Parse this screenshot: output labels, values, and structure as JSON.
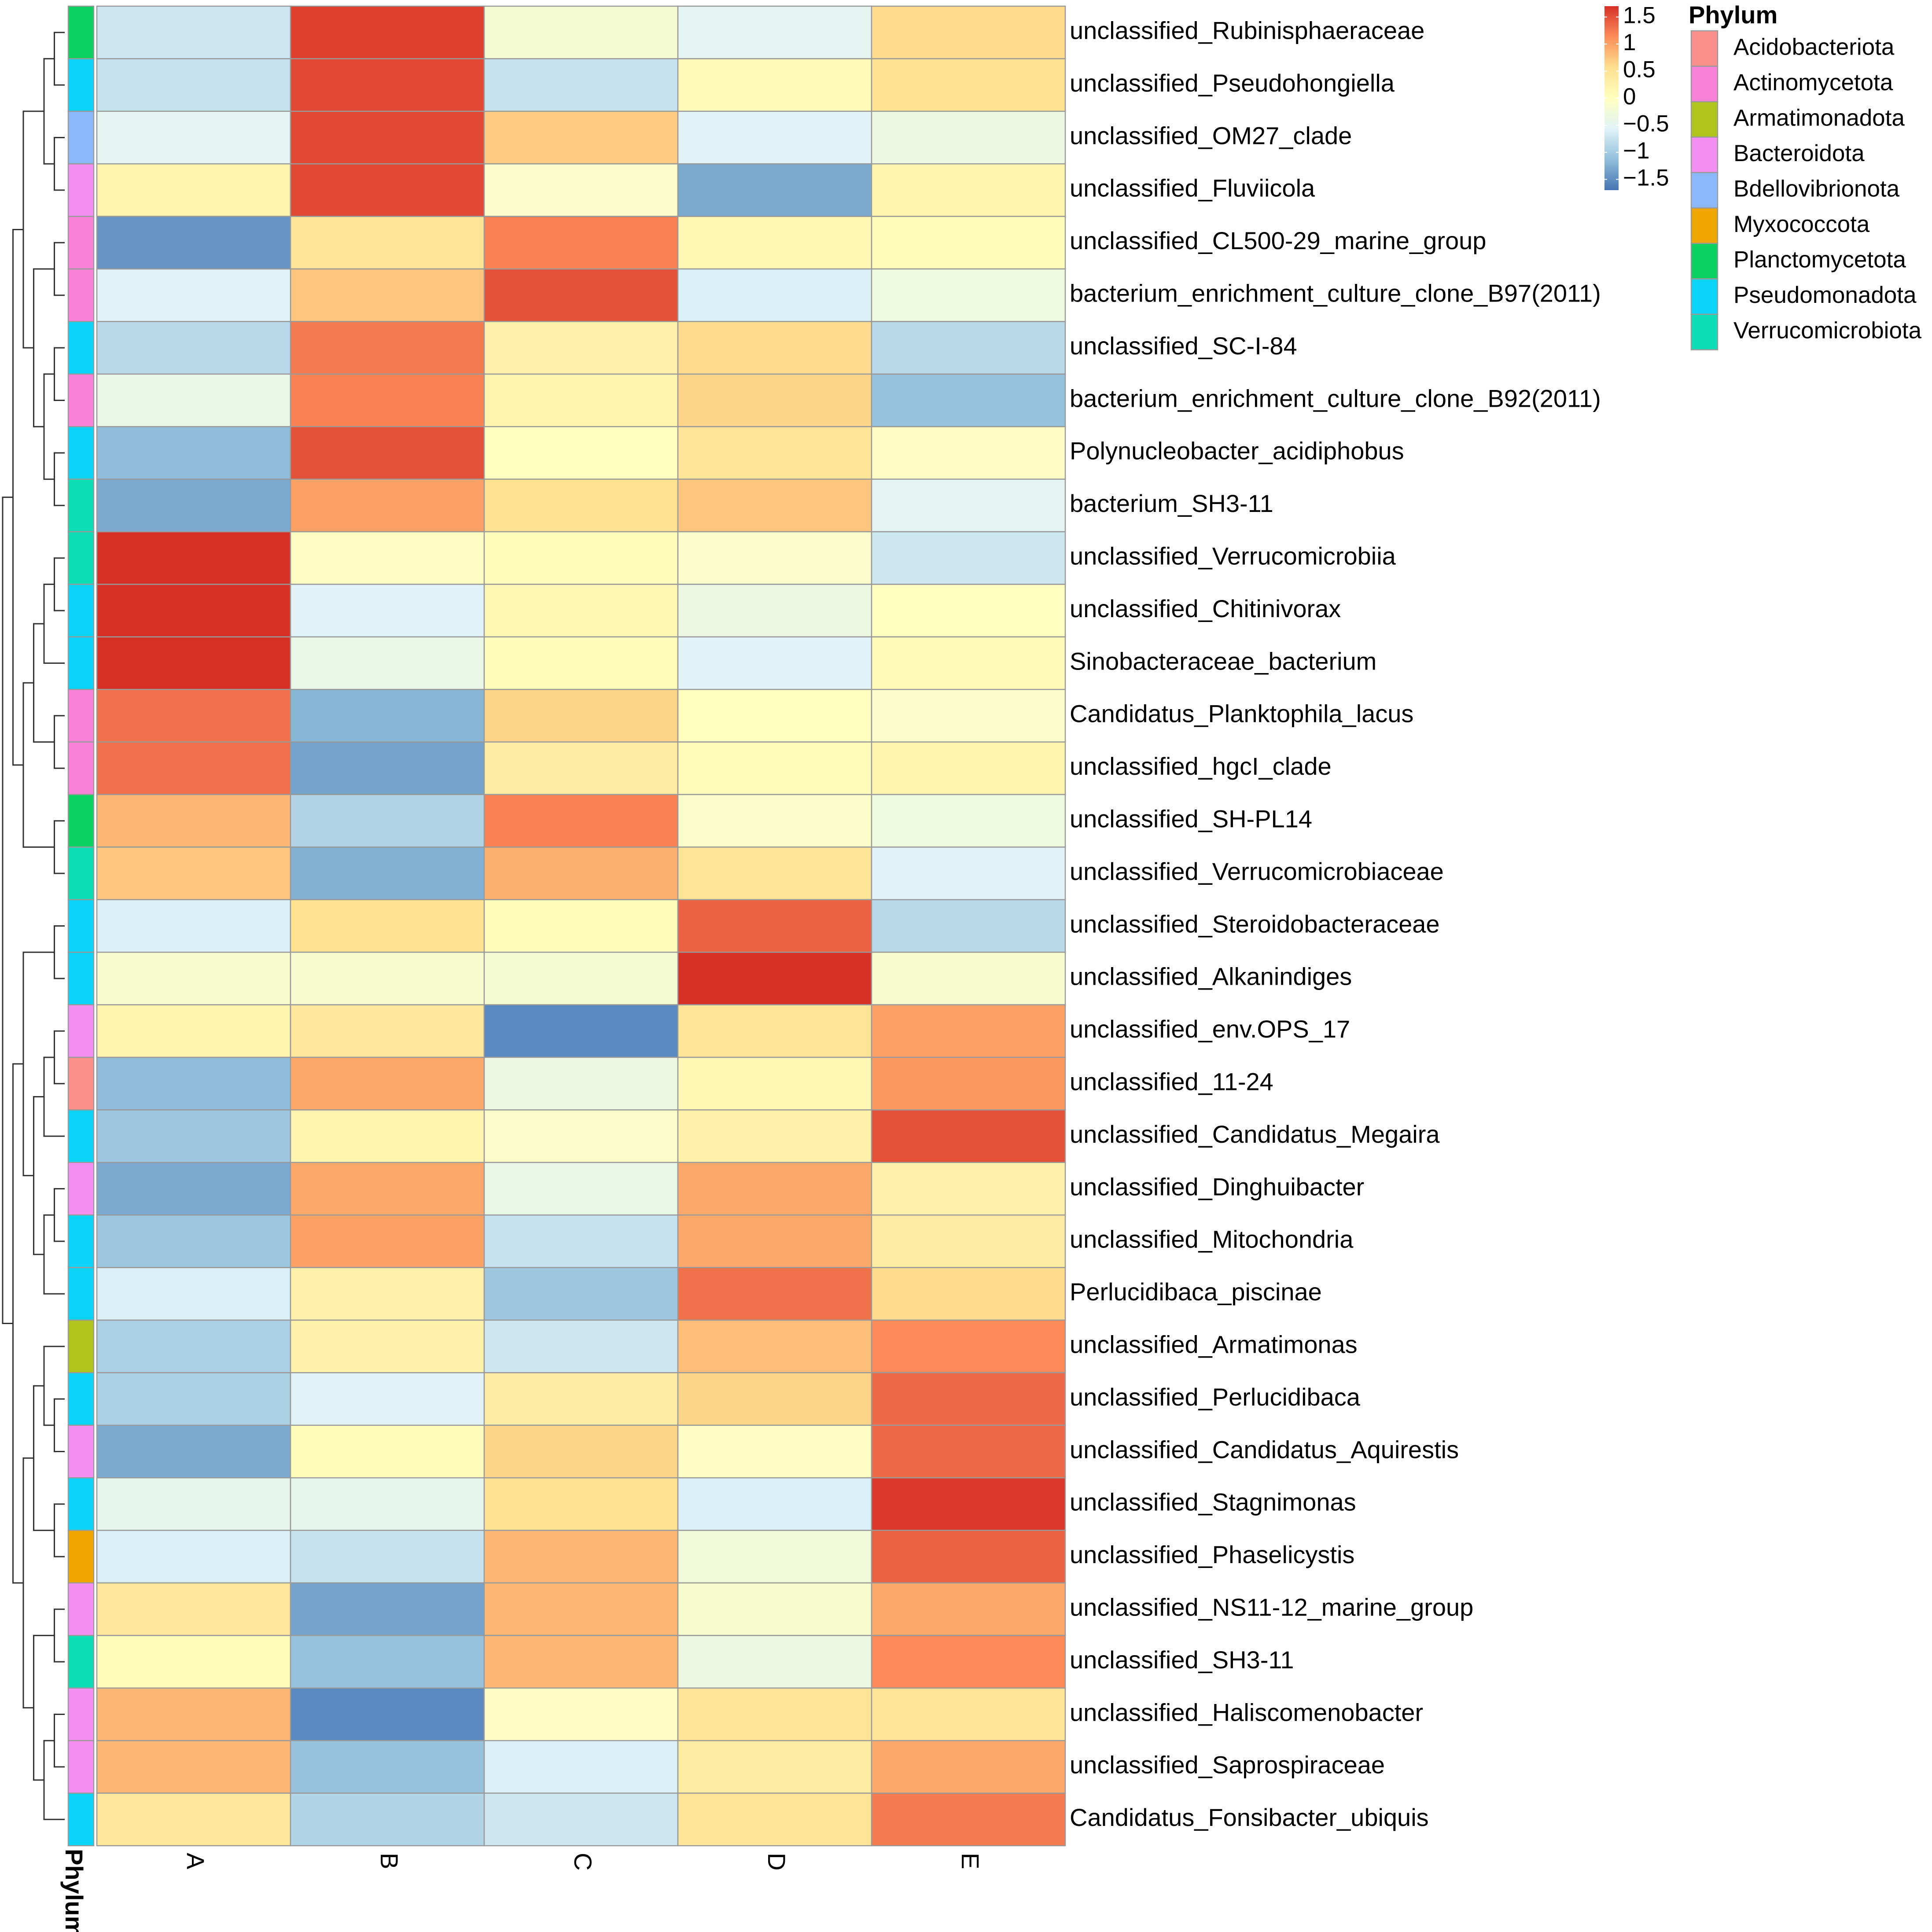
{
  "chart_data": {
    "type": "heatmap",
    "columns": [
      "A",
      "B",
      "C",
      "D",
      "E"
    ],
    "rows": [
      {
        "label": "unclassified_Rubinisphaeraceae",
        "phylum": "Planctomycetota",
        "values": [
          -0.7,
          1.6,
          -0.2,
          -0.5,
          0.6
        ]
      },
      {
        "label": "unclassified_Pseudohongiella",
        "phylum": "Pseudomonadota",
        "values": [
          -0.75,
          1.55,
          -0.75,
          0.1,
          0.55
        ]
      },
      {
        "label": "unclassified_OM27_clade",
        "phylum": "Bdellovibrionota",
        "values": [
          -0.5,
          1.55,
          0.7,
          -0.55,
          -0.35
        ]
      },
      {
        "label": "unclassified_Fluviicola",
        "phylum": "Bacteroidota",
        "values": [
          0.2,
          1.55,
          -0.1,
          -1.3,
          0.2
        ]
      },
      {
        "label": "unclassified_CL500-29_marine_group",
        "phylum": "Actinomycetota",
        "values": [
          -1.45,
          0.5,
          1.2,
          0.15,
          0.05
        ]
      },
      {
        "label": "bacterium_enrichment_culture_clone_B97(2011)",
        "phylum": "Actinomycetota",
        "values": [
          -0.55,
          0.75,
          1.5,
          -0.6,
          -0.3
        ]
      },
      {
        "label": "unclassified_SC-I-84",
        "phylum": "Pseudomonadota",
        "values": [
          -0.85,
          1.25,
          0.25,
          0.6,
          -0.85
        ]
      },
      {
        "label": "bacterium_enrichment_culture_clone_B92(2011)",
        "phylum": "Actinomycetota",
        "values": [
          -0.4,
          1.2,
          0.2,
          0.65,
          -1.1
        ]
      },
      {
        "label": "Polynucleobacter_acidiphobus",
        "phylum": "Pseudomonadota",
        "values": [
          -1.15,
          1.5,
          0.0,
          0.5,
          -0.05
        ]
      },
      {
        "label": "bacterium_SH3-11",
        "phylum": "Verrucomicrobiota",
        "values": [
          -1.3,
          1.0,
          0.55,
          0.75,
          -0.5
        ]
      },
      {
        "label": "unclassified_Verrucomicrobiia",
        "phylum": "Verrucomicrobiota",
        "values": [
          1.75,
          -0.05,
          0.05,
          -0.1,
          -0.7
        ]
      },
      {
        "label": "unclassified_Chitinivorax",
        "phylum": "Pseudomonadota",
        "values": [
          1.75,
          -0.55,
          0.15,
          -0.35,
          0.0
        ]
      },
      {
        "label": "Sinobacteraceae_bacterium",
        "phylum": "Pseudomonadota",
        "values": [
          1.75,
          -0.4,
          0.05,
          -0.55,
          0.1
        ]
      },
      {
        "label": "Candidatus_Planktophila_lacus",
        "phylum": "Actinomycetota",
        "values": [
          1.3,
          -1.2,
          0.65,
          0.0,
          -0.1
        ]
      },
      {
        "label": "unclassified_hgcI_clade",
        "phylum": "Actinomycetota",
        "values": [
          1.3,
          -1.35,
          0.35,
          0.05,
          0.2
        ]
      },
      {
        "label": "unclassified_SH-PL14",
        "phylum": "Planctomycetota",
        "values": [
          0.85,
          -0.9,
          1.2,
          -0.1,
          -0.3
        ]
      },
      {
        "label": "unclassified_Verrucomicrobiaceae",
        "phylum": "Verrucomicrobiota",
        "values": [
          0.75,
          -1.25,
          0.9,
          0.5,
          -0.55
        ]
      },
      {
        "label": "unclassified_Steroidobacteraceae",
        "phylum": "Pseudomonadota",
        "values": [
          -0.6,
          0.55,
          0.05,
          1.4,
          -0.85
        ]
      },
      {
        "label": "unclassified_Alkanindiges",
        "phylum": "Pseudomonadota",
        "values": [
          -0.15,
          -0.15,
          -0.2,
          1.75,
          -0.15
        ]
      },
      {
        "label": "unclassified_env.OPS_17",
        "phylum": "Bacteroidota",
        "values": [
          0.2,
          0.45,
          -1.55,
          0.5,
          1.0
        ]
      },
      {
        "label": "unclassified_11-24",
        "phylum": "Acidobacteriota",
        "values": [
          -1.15,
          0.95,
          -0.35,
          0.15,
          1.05
        ]
      },
      {
        "label": "unclassified_Candidatus_Megaira",
        "phylum": "Pseudomonadota",
        "values": [
          -1.05,
          0.2,
          -0.1,
          0.25,
          1.5
        ]
      },
      {
        "label": "unclassified_Dinghuibacter",
        "phylum": "Bacteroidota",
        "values": [
          -1.3,
          0.95,
          -0.4,
          0.95,
          0.25
        ]
      },
      {
        "label": "unclassified_Mitochondria",
        "phylum": "Pseudomonadota",
        "values": [
          -1.05,
          1.0,
          -0.75,
          0.95,
          0.35
        ]
      },
      {
        "label": "Perlucidibaca_piscinae",
        "phylum": "Pseudomonadota",
        "values": [
          -0.6,
          0.25,
          -1.05,
          1.3,
          0.6
        ]
      },
      {
        "label": "unclassified_Armatimonas",
        "phylum": "Armatimonadota",
        "values": [
          -0.95,
          0.25,
          -0.7,
          0.8,
          1.15
        ]
      },
      {
        "label": "unclassified_Perlucidibaca",
        "phylum": "Pseudomonadota",
        "values": [
          -0.95,
          -0.55,
          0.35,
          0.65,
          1.35
        ]
      },
      {
        "label": "unclassified_Candidatus_Aquirestis",
        "phylum": "Bacteroidota",
        "values": [
          -1.3,
          0.05,
          0.65,
          -0.05,
          1.35
        ]
      },
      {
        "label": "unclassified_Stagnimonas",
        "phylum": "Pseudomonadota",
        "values": [
          -0.45,
          -0.45,
          0.55,
          -0.6,
          1.65
        ]
      },
      {
        "label": "unclassified_Phaselicystis",
        "phylum": "Myxococcota",
        "values": [
          -0.6,
          -0.75,
          0.85,
          -0.25,
          1.4
        ]
      },
      {
        "label": "unclassified_NS11-12_marine_group",
        "phylum": "Bacteroidota",
        "values": [
          0.45,
          -1.35,
          0.85,
          -0.15,
          0.95
        ]
      },
      {
        "label": "unclassified_SH3-11",
        "phylum": "Verrucomicrobiota",
        "values": [
          0.05,
          -1.1,
          0.85,
          -0.35,
          1.15
        ]
      },
      {
        "label": "unclassified_Haliscomenobacter",
        "phylum": "Bacteroidota",
        "values": [
          0.85,
          -1.55,
          -0.05,
          0.5,
          0.5
        ]
      },
      {
        "label": "unclassified_Saprospiraceae",
        "phylum": "Bacteroidota",
        "values": [
          0.85,
          -1.1,
          -0.6,
          0.35,
          0.95
        ]
      },
      {
        "label": "Candidatus_Fonsibacter_ubiquis",
        "phylum": "Pseudomonadota",
        "values": [
          0.45,
          -0.9,
          -0.7,
          0.5,
          1.25
        ]
      }
    ],
    "color_scale": {
      "ticks": [
        "1.5",
        "1",
        "0.5",
        "0",
        "−0.5",
        "−1",
        "−1.5"
      ],
      "tick_values": [
        1.5,
        1,
        0.5,
        0,
        -0.5,
        -1,
        -1.5
      ],
      "range": [
        -1.7,
        1.7
      ],
      "colors": [
        "#4575b4",
        "#91bfdb",
        "#e0f3f8",
        "#ffffbf",
        "#fee090",
        "#fc8d59",
        "#d73027"
      ]
    },
    "annotation": {
      "title": "Phylum",
      "track_label": "Phylum",
      "categories": [
        {
          "name": "Acidobacteriota",
          "color": "#fb8f8c"
        },
        {
          "name": "Actinomycetota",
          "color": "#f982d9"
        },
        {
          "name": "Armatimonadota",
          "color": "#afc51d"
        },
        {
          "name": "Bacteroidota",
          "color": "#f48ff1"
        },
        {
          "name": "Bdellovibrionota",
          "color": "#8ab8fb"
        },
        {
          "name": "Myxococcota",
          "color": "#efa700"
        },
        {
          "name": "Planctomycetota",
          "color": "#0bd160"
        },
        {
          "name": "Pseudomonadota",
          "color": "#0ad5f8"
        },
        {
          "name": "Verrucomicrobiota",
          "color": "#0edeb6"
        }
      ]
    }
  }
}
